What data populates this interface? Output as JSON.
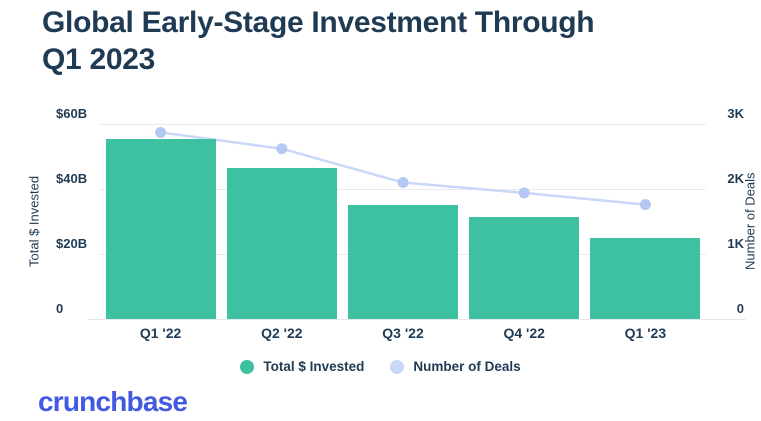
{
  "title": {
    "full": "Global Early-Stage Investment Through Q1 2023",
    "line1": "Global Early-Stage Investment Through",
    "line2": "Q1 2023"
  },
  "chart_data": {
    "type": "bar",
    "subtype": "combo-bar-line",
    "title": "Global Early-Stage Investment Through Q1 2023",
    "categories": [
      "Q1 '22",
      "Q2 '22",
      "Q3 '22",
      "Q4 '22",
      "Q1 '23"
    ],
    "series": [
      {
        "name": "Total $ Invested",
        "type": "bar",
        "axis": "left",
        "unit": "USD billions",
        "values": [
          55.5,
          46.5,
          35,
          31.5,
          25
        ]
      },
      {
        "name": "Number of Deals",
        "type": "line",
        "axis": "right",
        "unit": "deals",
        "values": [
          2870,
          2620,
          2100,
          1940,
          1760
        ]
      }
    ],
    "left_axis": {
      "label": "Total $ Invested",
      "ticks": [
        "$60B",
        "$40B",
        "$20B",
        "0"
      ],
      "min": 0,
      "max": 60
    },
    "right_axis": {
      "label": "Number of Deals",
      "ticks": [
        "3K",
        "2K",
        "1K",
        "0"
      ],
      "min": 0,
      "max": 3000
    },
    "grid": true,
    "legend_position": "bottom"
  },
  "legend": {
    "items": [
      {
        "label": "Total $ Invested",
        "color": "#3EC1A1"
      },
      {
        "label": "Number of Deals",
        "color": "#C9D7F8"
      }
    ]
  },
  "colors": {
    "bar": "#3EC1A1",
    "line": "#C9D7F8",
    "line_dot": "#B4C8F3",
    "text": "#1F3B54",
    "gridline": "#E9EAEE",
    "logo": "#4259E2",
    "background": "#FFFFFF"
  },
  "footer": {
    "logo_text": "crunchbase"
  }
}
